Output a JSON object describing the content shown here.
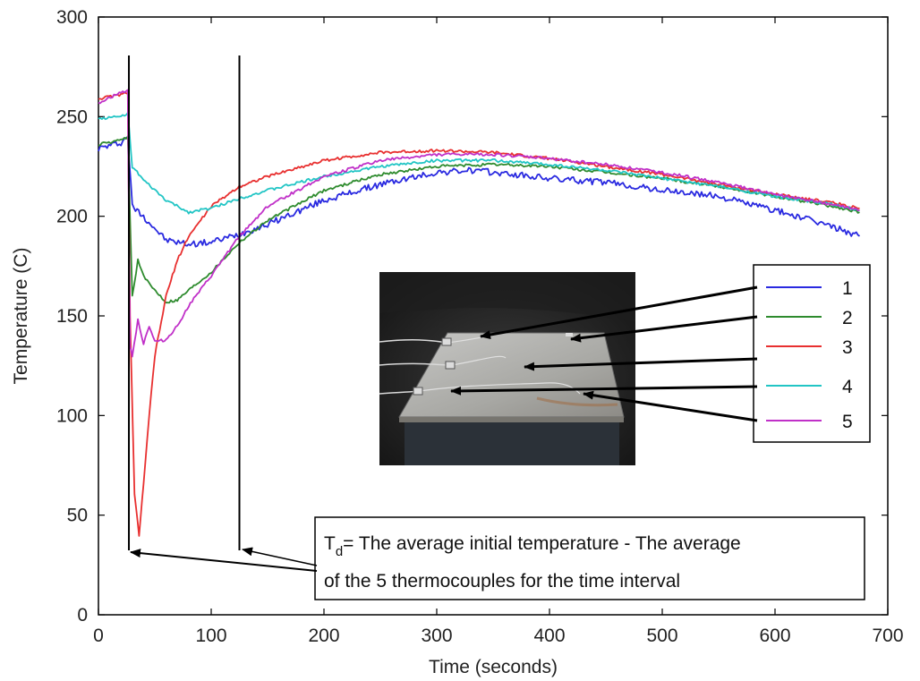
{
  "chart_data": {
    "type": "line",
    "xlabel": "Time (seconds)",
    "ylabel": "Temperature (C)",
    "xlim": [
      0,
      700
    ],
    "ylim": [
      0,
      300
    ],
    "xticks": [
      0,
      100,
      200,
      300,
      400,
      500,
      600,
      700
    ],
    "yticks": [
      0,
      50,
      100,
      150,
      200,
      250,
      300
    ],
    "grid": false,
    "legend_position": "right, over a photo inset",
    "series": [
      {
        "name": "1",
        "color": "#2a2ae0",
        "x": [
          0,
          20,
          26,
          30,
          40,
          60,
          80,
          100,
          125,
          150,
          200,
          250,
          300,
          330,
          350,
          400,
          450,
          500,
          550,
          600,
          650,
          675
        ],
        "y": [
          234,
          237,
          240,
          205,
          200,
          188,
          186,
          187,
          191,
          196,
          208,
          216,
          222,
          223,
          222,
          219,
          217,
          213,
          210,
          203,
          195,
          190
        ]
      },
      {
        "name": "2",
        "color": "#2e8b2e",
        "x": [
          0,
          20,
          26,
          30,
          35,
          40,
          45,
          55,
          60,
          70,
          80,
          100,
          125,
          150,
          200,
          250,
          300,
          350,
          400,
          450,
          500,
          550,
          600,
          650,
          675
        ],
        "y": [
          236,
          238,
          240,
          160,
          178,
          170,
          166,
          160,
          157,
          158,
          163,
          172,
          187,
          198,
          213,
          221,
          225,
          226,
          225,
          222,
          219,
          215,
          210,
          205,
          202
        ]
      },
      {
        "name": "3",
        "color": "#e83030",
        "x": [
          0,
          20,
          26,
          28,
          32,
          36,
          40,
          45,
          50,
          60,
          70,
          80,
          100,
          125,
          150,
          200,
          250,
          300,
          350,
          400,
          450,
          500,
          550,
          600,
          650,
          675
        ],
        "y": [
          259,
          261,
          262,
          150,
          60,
          40,
          65,
          100,
          130,
          160,
          178,
          190,
          205,
          215,
          220,
          228,
          232,
          233,
          232,
          229,
          225,
          221,
          216,
          211,
          207,
          204
        ]
      },
      {
        "name": "4",
        "color": "#22c5c5",
        "x": [
          0,
          20,
          26,
          30,
          40,
          60,
          80,
          100,
          125,
          150,
          200,
          250,
          300,
          350,
          400,
          450,
          500,
          550,
          600,
          650,
          675
        ],
        "y": [
          249,
          250,
          252,
          225,
          218,
          208,
          202,
          204,
          209,
          213,
          220,
          225,
          228,
          228,
          226,
          223,
          219,
          215,
          210,
          206,
          203
        ]
      },
      {
        "name": "5",
        "color": "#c030c8",
        "x": [
          0,
          20,
          26,
          28,
          30,
          35,
          40,
          45,
          50,
          60,
          70,
          80,
          100,
          125,
          150,
          200,
          250,
          300,
          350,
          400,
          450,
          500,
          550,
          600,
          650,
          675
        ],
        "y": [
          257,
          262,
          263,
          135,
          130,
          148,
          136,
          145,
          137,
          138,
          145,
          155,
          170,
          190,
          205,
          220,
          228,
          231,
          231,
          229,
          226,
          222,
          217,
          211,
          206,
          203
        ]
      }
    ],
    "vertical_markers": [
      27,
      125
    ],
    "annotation": {
      "symbol": "T",
      "subscript": "d",
      "line1_rest": "= The average initial temperature - The average",
      "line2": "of the 5 thermocouples for the time interval"
    }
  }
}
